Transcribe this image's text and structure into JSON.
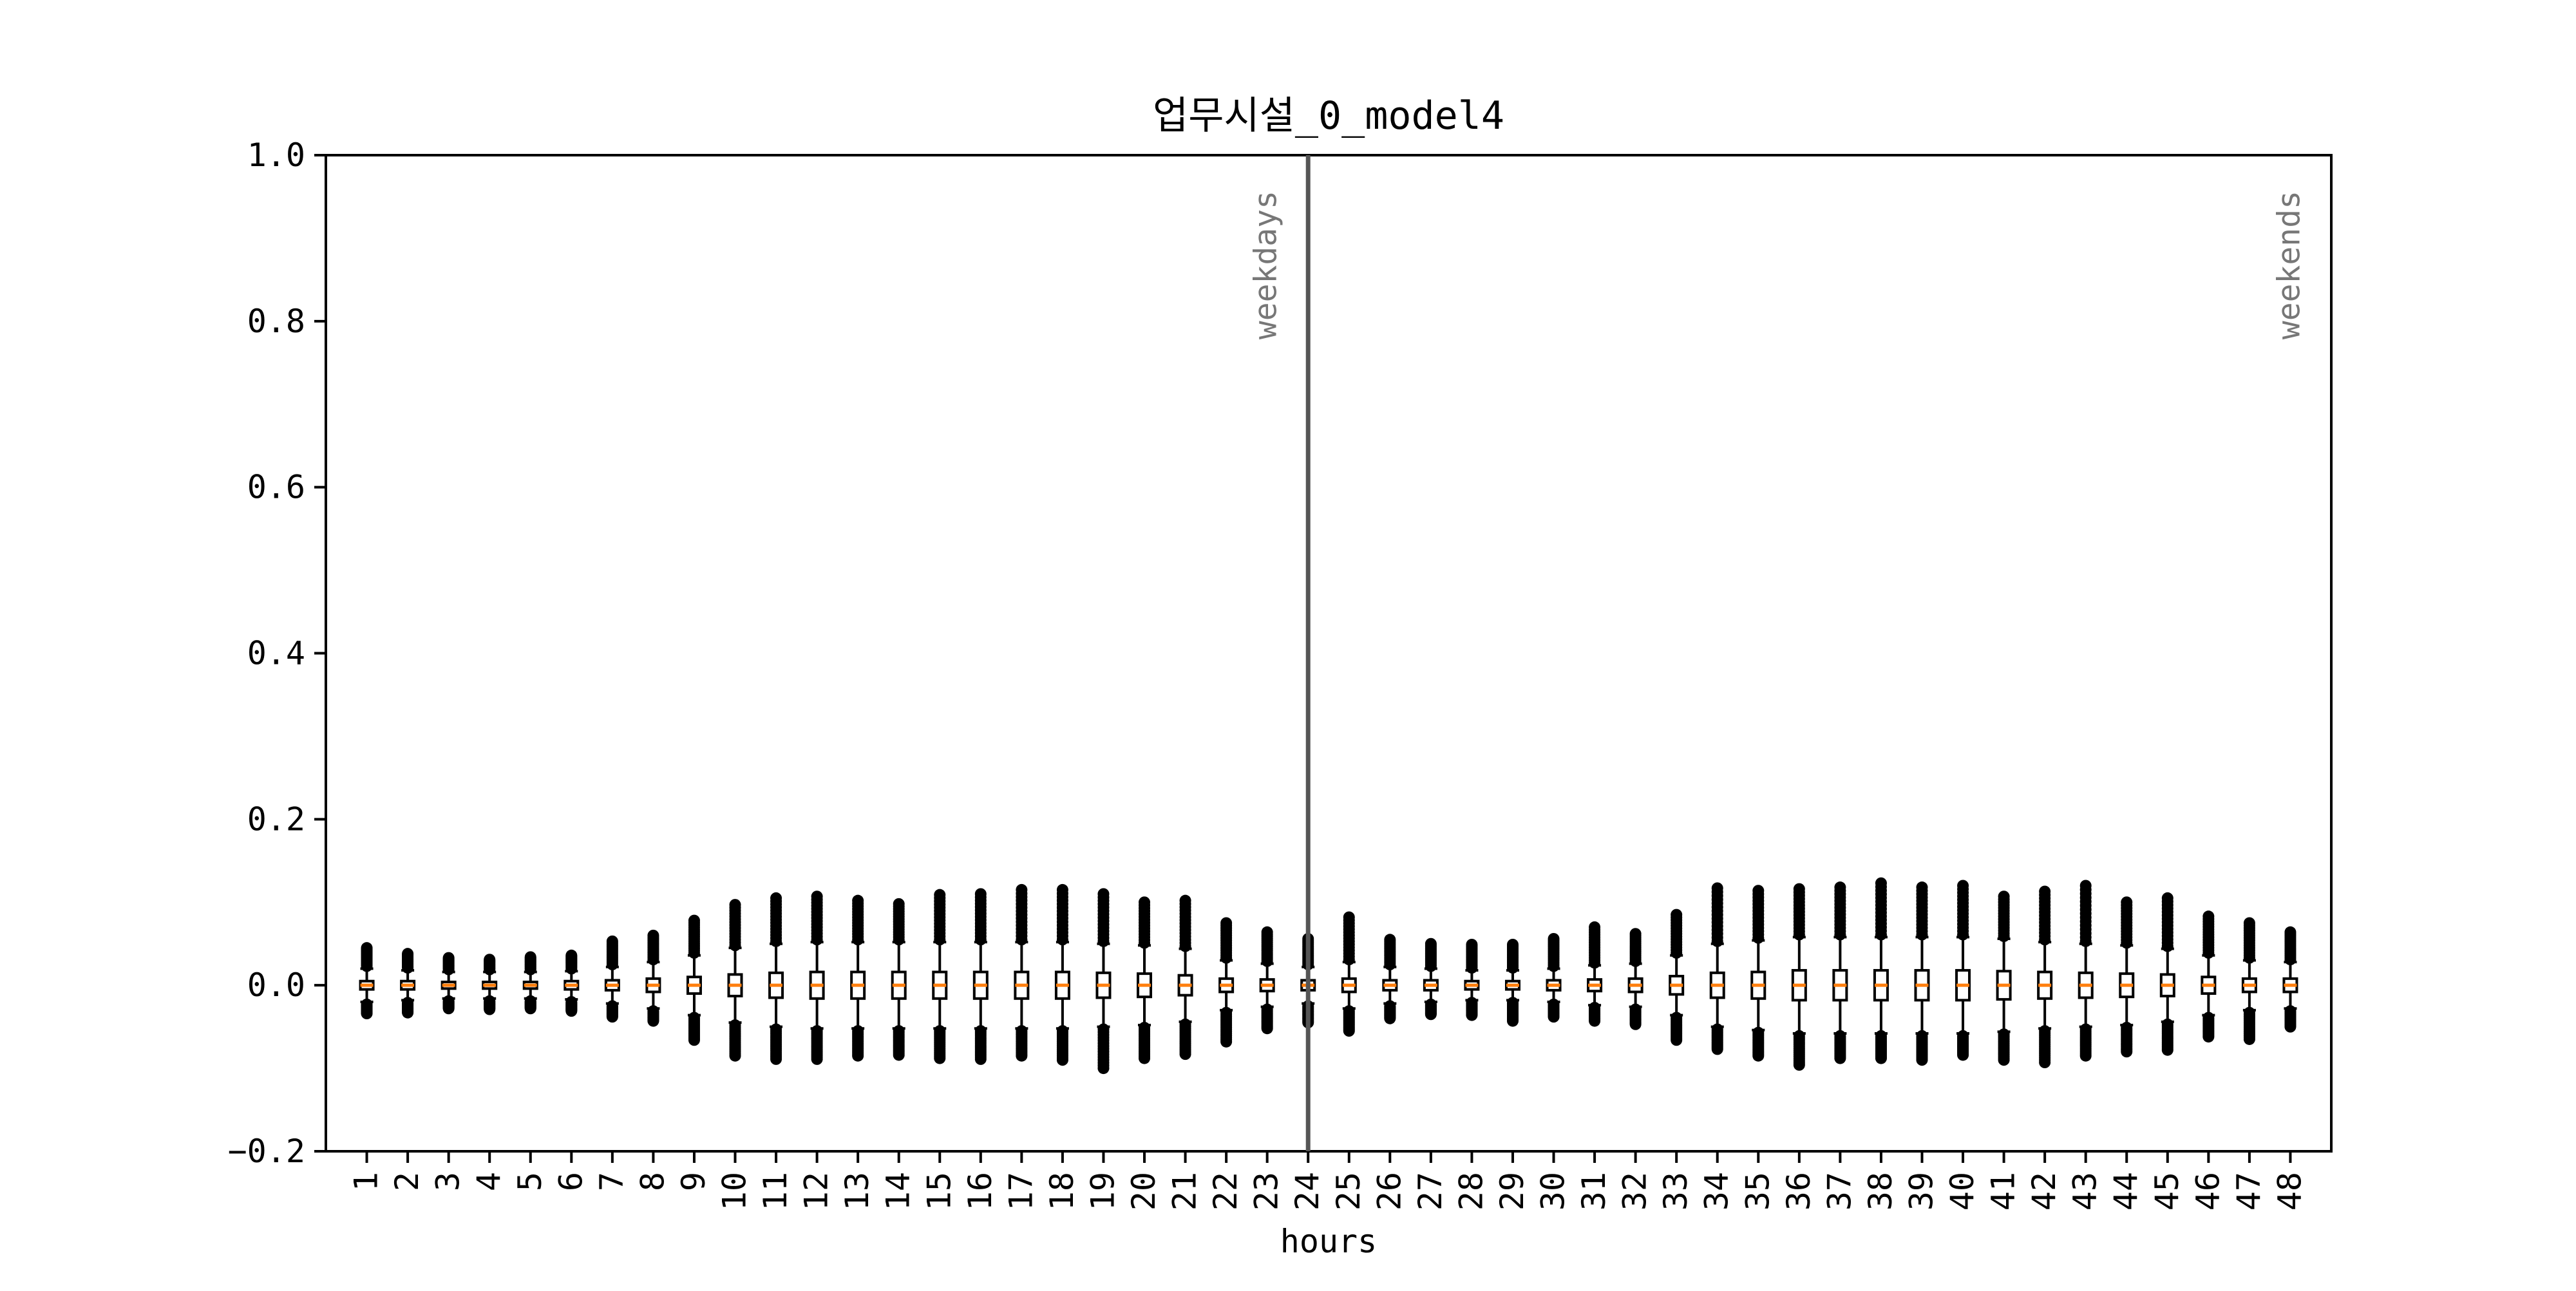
{
  "chart_data": {
    "type": "box",
    "title": "업무시설_0_model4",
    "xlabel": "hours",
    "ylabel": "",
    "ylim": [
      -0.2,
      1.0
    ],
    "yticks": [
      -0.2,
      0.0,
      0.2,
      0.4,
      0.6,
      0.8,
      1.0
    ],
    "ytick_labels": [
      "−0.2",
      "0.0",
      "0.2",
      "0.4",
      "0.6",
      "0.8",
      "1.0"
    ],
    "categories": [
      "1",
      "2",
      "3",
      "4",
      "5",
      "6",
      "7",
      "8",
      "9",
      "10",
      "11",
      "12",
      "13",
      "14",
      "15",
      "16",
      "17",
      "18",
      "19",
      "20",
      "21",
      "22",
      "23",
      "24",
      "25",
      "26",
      "27",
      "28",
      "29",
      "30",
      "31",
      "32",
      "33",
      "34",
      "35",
      "36",
      "37",
      "38",
      "39",
      "40",
      "41",
      "42",
      "43",
      "44",
      "45",
      "46",
      "47",
      "48"
    ],
    "grid": false,
    "median_color": "#ff7f0e",
    "divider": {
      "x": 24,
      "color": "#555555"
    },
    "annotations": [
      {
        "text": "weekdays",
        "x": 23,
        "color": "#777777"
      },
      {
        "text": "weekends",
        "x": 48,
        "color": "#777777"
      }
    ],
    "series": [
      {
        "median": [
          0,
          0,
          0,
          0,
          0,
          0,
          0,
          0,
          0,
          0,
          0,
          0,
          0,
          0,
          0,
          0,
          0,
          0,
          0,
          0,
          0,
          0,
          0,
          0,
          0,
          0,
          0,
          0,
          0,
          0,
          0,
          0,
          0,
          0,
          0,
          0,
          0,
          0,
          0,
          0,
          0,
          0,
          0,
          0,
          0,
          0,
          0,
          0
        ],
        "q1": [
          -0.005,
          -0.005,
          -0.004,
          -0.004,
          -0.004,
          -0.005,
          -0.006,
          -0.008,
          -0.01,
          -0.013,
          -0.015,
          -0.016,
          -0.016,
          -0.016,
          -0.016,
          -0.016,
          -0.016,
          -0.016,
          -0.015,
          -0.014,
          -0.012,
          -0.008,
          -0.007,
          -0.006,
          -0.008,
          -0.006,
          -0.006,
          -0.005,
          -0.005,
          -0.006,
          -0.007,
          -0.008,
          -0.011,
          -0.015,
          -0.016,
          -0.018,
          -0.018,
          -0.018,
          -0.018,
          -0.018,
          -0.017,
          -0.016,
          -0.015,
          -0.014,
          -0.013,
          -0.01,
          -0.008,
          -0.008
        ],
        "q3": [
          0.005,
          0.005,
          0.004,
          0.004,
          0.004,
          0.005,
          0.006,
          0.008,
          0.01,
          0.013,
          0.015,
          0.016,
          0.016,
          0.016,
          0.016,
          0.016,
          0.016,
          0.016,
          0.015,
          0.014,
          0.012,
          0.008,
          0.007,
          0.006,
          0.008,
          0.006,
          0.006,
          0.005,
          0.005,
          0.006,
          0.007,
          0.008,
          0.011,
          0.015,
          0.016,
          0.018,
          0.018,
          0.018,
          0.018,
          0.018,
          0.017,
          0.016,
          0.015,
          0.014,
          0.013,
          0.01,
          0.008,
          0.008
        ],
        "whisker_low": [
          -0.02,
          -0.018,
          -0.016,
          -0.016,
          -0.016,
          -0.017,
          -0.022,
          -0.028,
          -0.036,
          -0.045,
          -0.05,
          -0.052,
          -0.052,
          -0.052,
          -0.052,
          -0.052,
          -0.052,
          -0.052,
          -0.05,
          -0.048,
          -0.044,
          -0.03,
          -0.026,
          -0.022,
          -0.028,
          -0.022,
          -0.02,
          -0.018,
          -0.018,
          -0.02,
          -0.024,
          -0.026,
          -0.036,
          -0.05,
          -0.054,
          -0.058,
          -0.058,
          -0.058,
          -0.058,
          -0.058,
          -0.056,
          -0.052,
          -0.05,
          -0.048,
          -0.044,
          -0.036,
          -0.03,
          -0.028
        ],
        "whisker_high": [
          0.02,
          0.018,
          0.016,
          0.016,
          0.016,
          0.017,
          0.022,
          0.028,
          0.036,
          0.045,
          0.05,
          0.052,
          0.052,
          0.052,
          0.052,
          0.052,
          0.052,
          0.052,
          0.05,
          0.048,
          0.044,
          0.03,
          0.026,
          0.022,
          0.028,
          0.022,
          0.02,
          0.018,
          0.018,
          0.02,
          0.024,
          0.026,
          0.036,
          0.05,
          0.054,
          0.058,
          0.058,
          0.058,
          0.058,
          0.058,
          0.056,
          0.052,
          0.05,
          0.048,
          0.044,
          0.036,
          0.03,
          0.028
        ],
        "flier_max": [
          0.045,
          0.038,
          0.033,
          0.031,
          0.034,
          0.036,
          0.053,
          0.06,
          0.078,
          0.097,
          0.105,
          0.107,
          0.102,
          0.098,
          0.109,
          0.11,
          0.115,
          0.115,
          0.11,
          0.1,
          0.102,
          0.075,
          0.064,
          0.056,
          0.082,
          0.055,
          0.05,
          0.049,
          0.049,
          0.056,
          0.07,
          0.062,
          0.085,
          0.117,
          0.114,
          0.116,
          0.118,
          0.123,
          0.118,
          0.12,
          0.107,
          0.113,
          0.12,
          0.1,
          0.105,
          0.083,
          0.075,
          0.064
        ],
        "flier_min": [
          -0.034,
          -0.033,
          -0.028,
          -0.029,
          -0.028,
          -0.031,
          -0.038,
          -0.043,
          -0.066,
          -0.085,
          -0.089,
          -0.089,
          -0.085,
          -0.084,
          -0.088,
          -0.089,
          -0.085,
          -0.09,
          -0.1,
          -0.088,
          -0.083,
          -0.068,
          -0.052,
          -0.045,
          -0.055,
          -0.04,
          -0.035,
          -0.036,
          -0.043,
          -0.038,
          -0.043,
          -0.047,
          -0.066,
          -0.077,
          -0.085,
          -0.096,
          -0.088,
          -0.088,
          -0.09,
          -0.084,
          -0.09,
          -0.093,
          -0.085,
          -0.08,
          -0.078,
          -0.062,
          -0.065,
          -0.05
        ]
      }
    ]
  }
}
